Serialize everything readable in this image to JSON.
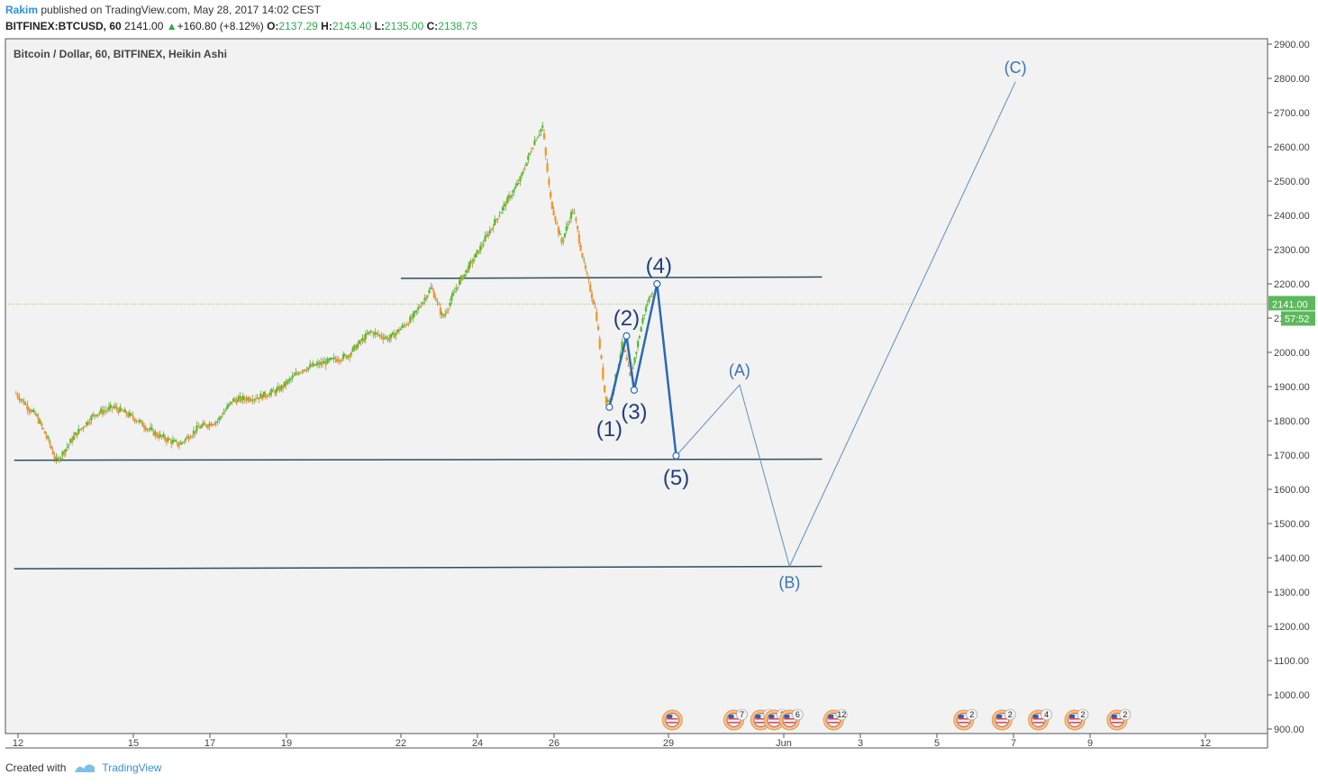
{
  "header": {
    "author": "Rakim",
    "published_text": "published on TradingView.com, May 28, 2017 14:02 CEST",
    "symbol": "BITFINEX:BTCUSD, 60",
    "last": "2141.00",
    "change": "+160.80 (+8.12%)",
    "o_label": "O:",
    "o_value": "2137.29",
    "h_label": "H:",
    "h_value": "2143.40",
    "l_label": "L:",
    "l_value": "2135.00",
    "c_label": "C:",
    "c_value": "2138.73"
  },
  "footer": {
    "created_text": "Created with",
    "brand": "TradingView"
  },
  "colors": {
    "up": "#49c41b",
    "down": "#f7941d",
    "wave": "#2a69b8",
    "wave_light": "#5b8fc8",
    "level": "#2b4f60",
    "grid_bg": "#f2f2f2"
  },
  "chart_data": {
    "type": "candlestick",
    "title": "Bitcoin / Dollar, 60, BITFINEX, Heikin Ashi",
    "candle_style": "Heikin Ashi",
    "y_axis": {
      "range": [
        875,
        2925
      ],
      "ticks": [
        "900.00",
        "1000.00",
        "1100.00",
        "1200.00",
        "1300.00",
        "1400.00",
        "1500.00",
        "1600.00",
        "1700.00",
        "1800.00",
        "1900.00",
        "2000.00",
        "2100.00",
        "2200.00",
        "2300.00",
        "2400.00",
        "2500.00",
        "2600.00",
        "2700.00",
        "2800.00",
        "2900.00"
      ]
    },
    "x_axis": {
      "ticks": [
        {
          "label": "12",
          "day": 12
        },
        {
          "label": "15",
          "day": 15
        },
        {
          "label": "17",
          "day": 17
        },
        {
          "label": "19",
          "day": 19
        },
        {
          "label": "22",
          "day": 22
        },
        {
          "label": "24",
          "day": 24
        },
        {
          "label": "26",
          "day": 26
        },
        {
          "label": "29",
          "day": 29
        },
        {
          "label": "Jun",
          "day": 32
        },
        {
          "label": "3",
          "day": 34
        },
        {
          "label": "5",
          "day": 36
        },
        {
          "label": "7",
          "day": 38
        },
        {
          "label": "9",
          "day": 40
        },
        {
          "label": "12",
          "day": 43
        }
      ]
    },
    "price_path": [
      [
        11.95,
        1880
      ],
      [
        12.5,
        1810
      ],
      [
        12.8,
        1740
      ],
      [
        13.0,
        1680
      ],
      [
        13.5,
        1760
      ],
      [
        14.0,
        1820
      ],
      [
        14.5,
        1840
      ],
      [
        15.0,
        1810
      ],
      [
        15.6,
        1760
      ],
      [
        16.2,
        1730
      ],
      [
        16.7,
        1780
      ],
      [
        17.2,
        1800
      ],
      [
        17.6,
        1860
      ],
      [
        18.3,
        1870
      ],
      [
        18.8,
        1890
      ],
      [
        19.4,
        1950
      ],
      [
        20.0,
        1970
      ],
      [
        20.6,
        1990
      ],
      [
        21.2,
        2060
      ],
      [
        21.7,
        2040
      ],
      [
        22.3,
        2100
      ],
      [
        22.8,
        2190
      ],
      [
        23.1,
        2100
      ],
      [
        23.5,
        2200
      ],
      [
        24.0,
        2290
      ],
      [
        24.6,
        2410
      ],
      [
        25.1,
        2500
      ],
      [
        25.5,
        2620
      ],
      [
        25.7,
        2660
      ],
      [
        25.9,
        2450
      ],
      [
        26.2,
        2320
      ],
      [
        26.5,
        2420
      ],
      [
        26.8,
        2250
      ],
      [
        27.1,
        2120
      ],
      [
        27.35,
        1860
      ],
      [
        27.5,
        1860
      ],
      [
        27.8,
        2030
      ],
      [
        28.0,
        1920
      ],
      [
        28.35,
        2110
      ],
      [
        28.6,
        2190
      ]
    ],
    "levels": [
      {
        "name": "upper-resistance",
        "points": [
          [
            22.0,
            2216
          ],
          [
            33.0,
            2220
          ]
        ]
      },
      {
        "name": "middle-support",
        "points": [
          [
            11.9,
            1685
          ],
          [
            33.0,
            1688
          ]
        ]
      },
      {
        "name": "lower-support",
        "points": [
          [
            11.9,
            1368
          ],
          [
            33.0,
            1375
          ]
        ]
      }
    ],
    "wave_impulse": [
      {
        "label": "(1)",
        "day": 27.45,
        "price": 1840
      },
      {
        "label": "(2)",
        "day": 27.9,
        "price": 2048
      },
      {
        "label": "(3)",
        "day": 28.1,
        "price": 1890
      },
      {
        "label": "(4)",
        "day": 28.7,
        "price": 2200
      },
      {
        "label": "(5)",
        "day": 29.2,
        "price": 1698
      }
    ],
    "wave_correction": [
      {
        "label": "",
        "day": 29.2,
        "price": 1698
      },
      {
        "label": "(A)",
        "day": 30.85,
        "price": 1905
      },
      {
        "label": "(B)",
        "day": 32.15,
        "price": 1375
      },
      {
        "label": "(C)",
        "day": 38.05,
        "price": 2790
      }
    ],
    "current_price": {
      "value": "2141.00",
      "price": 2141,
      "countdown": "57:52"
    },
    "event_markers": [
      {
        "day": 29.1,
        "count": ""
      },
      {
        "day": 30.7,
        "count": "7"
      },
      {
        "day": 31.4,
        "count": "2"
      },
      {
        "day": 31.75,
        "count": "3"
      },
      {
        "day": 32.15,
        "count": "6"
      },
      {
        "day": 33.3,
        "count": "12"
      },
      {
        "day": 36.7,
        "count": "2"
      },
      {
        "day": 37.7,
        "count": "2"
      },
      {
        "day": 38.65,
        "count": "4"
      },
      {
        "day": 39.6,
        "count": "2"
      },
      {
        "day": 40.7,
        "count": "2"
      }
    ]
  }
}
